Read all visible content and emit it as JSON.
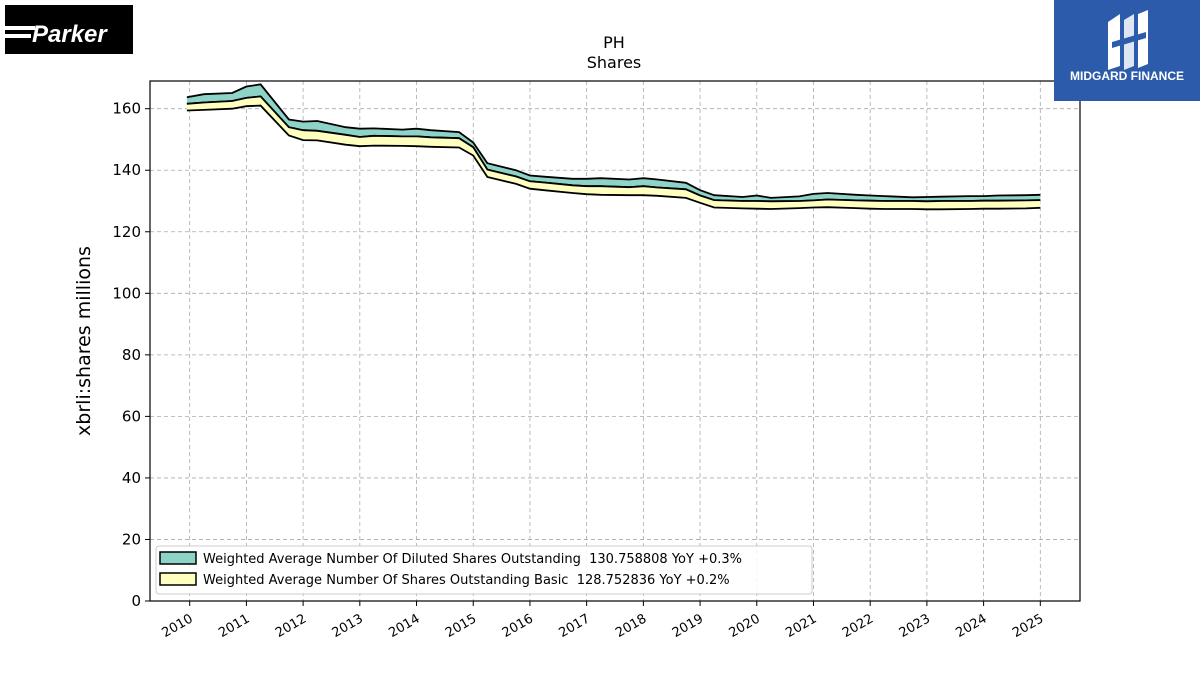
{
  "logos": {
    "left_text": "Parker",
    "right_text": "MIDGARD FINANCE"
  },
  "chart_data": {
    "type": "area",
    "title": "PH",
    "subtitle": "Shares",
    "xlabel": "",
    "ylabel": "xbrli:shares millions",
    "ylim": [
      0,
      169
    ],
    "xlim": [
      2009.3,
      2025.7
    ],
    "yticks": [
      0,
      20,
      40,
      60,
      80,
      100,
      120,
      140,
      160
    ],
    "xticks": [
      "2010",
      "2011",
      "2012",
      "2013",
      "2014",
      "2015",
      "2016",
      "2017",
      "2018",
      "2019",
      "2020",
      "2021",
      "2022",
      "2023",
      "2024",
      "2025"
    ],
    "grid": true,
    "legend_position": "lower-left",
    "series": [
      {
        "name": "Weighted Average Number Of Diluted Shares Outstanding",
        "legend_label": "Weighted Average Number Of Diluted Shares Outstanding  130.758808 YoY +0.3%",
        "color": "#8dd3c7",
        "x": [
          2009.95,
          2010.25,
          2010.75,
          2011.0,
          2011.25,
          2011.75,
          2012.0,
          2012.25,
          2012.75,
          2013.0,
          2013.25,
          2013.75,
          2014.0,
          2014.25,
          2014.75,
          2015.0,
          2015.25,
          2015.75,
          2016.0,
          2016.25,
          2016.75,
          2017.0,
          2017.25,
          2017.75,
          2018.0,
          2018.25,
          2018.75,
          2019.0,
          2019.25,
          2019.75,
          2020.0,
          2020.25,
          2020.75,
          2021.0,
          2021.25,
          2021.75,
          2022.0,
          2022.25,
          2022.75,
          2023.0,
          2023.25,
          2023.75,
          2024.0,
          2024.25,
          2024.75,
          2025.0
        ],
        "upper": [
          163.7,
          164.7,
          165.1,
          167.2,
          167.9,
          156.5,
          155.8,
          156.0,
          154.0,
          153.5,
          153.6,
          153.2,
          153.5,
          153.0,
          152.4,
          149.0,
          142.3,
          140.0,
          138.3,
          137.9,
          137.2,
          137.2,
          137.4,
          137.0,
          137.4,
          137.0,
          135.9,
          133.5,
          131.9,
          131.3,
          131.8,
          131.0,
          131.5,
          132.3,
          132.6,
          132.0,
          131.8,
          131.6,
          131.2,
          131.3,
          131.4,
          131.6,
          131.6,
          131.8,
          131.9,
          132.0
        ],
        "lower": [
          161.6,
          162.0,
          162.5,
          163.5,
          164.0,
          154.0,
          153.0,
          152.8,
          151.5,
          150.8,
          151.2,
          151.0,
          151.0,
          150.7,
          150.4,
          147.5,
          140.2,
          138.0,
          136.4,
          136.0,
          135.1,
          134.8,
          134.8,
          134.5,
          134.8,
          134.4,
          133.8,
          131.8,
          130.3,
          130.0,
          130.0,
          129.9,
          130.0,
          130.2,
          130.5,
          130.2,
          130.1,
          130.0,
          130.0,
          129.9,
          130.0,
          130.0,
          130.1,
          130.1,
          130.2,
          130.3
        ]
      },
      {
        "name": "Weighted Average Number Of Shares Outstanding Basic",
        "legend_label": "Weighted Average Number Of Shares Outstanding Basic  128.752836 YoY +0.2%",
        "color": "#ffffbf",
        "x": [
          2009.95,
          2010.25,
          2010.75,
          2011.0,
          2011.25,
          2011.75,
          2012.0,
          2012.25,
          2012.75,
          2013.0,
          2013.25,
          2013.75,
          2014.0,
          2014.25,
          2014.75,
          2015.0,
          2015.25,
          2015.75,
          2016.0,
          2016.25,
          2016.75,
          2017.0,
          2017.25,
          2017.75,
          2018.0,
          2018.25,
          2018.75,
          2019.0,
          2019.25,
          2019.75,
          2020.0,
          2020.25,
          2020.75,
          2021.0,
          2021.25,
          2021.75,
          2022.0,
          2022.25,
          2022.75,
          2023.0,
          2023.25,
          2023.75,
          2024.0,
          2024.25,
          2024.75,
          2025.0
        ],
        "upper": [
          161.6,
          162.0,
          162.5,
          163.5,
          164.0,
          154.0,
          153.0,
          152.8,
          151.5,
          150.8,
          151.2,
          151.0,
          151.0,
          150.7,
          150.4,
          147.5,
          140.2,
          138.0,
          136.4,
          136.0,
          135.1,
          134.8,
          134.8,
          134.5,
          134.8,
          134.4,
          133.8,
          131.8,
          130.3,
          130.0,
          130.0,
          129.9,
          130.0,
          130.2,
          130.5,
          130.2,
          130.1,
          130.0,
          130.0,
          129.9,
          130.0,
          130.0,
          130.1,
          130.1,
          130.2,
          130.3
        ],
        "lower": [
          159.4,
          159.6,
          160.0,
          160.8,
          161.0,
          151.3,
          149.8,
          149.7,
          148.3,
          147.8,
          148.0,
          147.9,
          147.8,
          147.6,
          147.4,
          144.8,
          137.8,
          135.6,
          134.0,
          133.5,
          132.6,
          132.2,
          132.0,
          131.9,
          131.9,
          131.7,
          131.0,
          129.4,
          127.9,
          127.6,
          127.5,
          127.4,
          127.7,
          127.9,
          128.0,
          127.7,
          127.5,
          127.4,
          127.4,
          127.3,
          127.3,
          127.4,
          127.5,
          127.5,
          127.6,
          127.8
        ]
      }
    ]
  }
}
